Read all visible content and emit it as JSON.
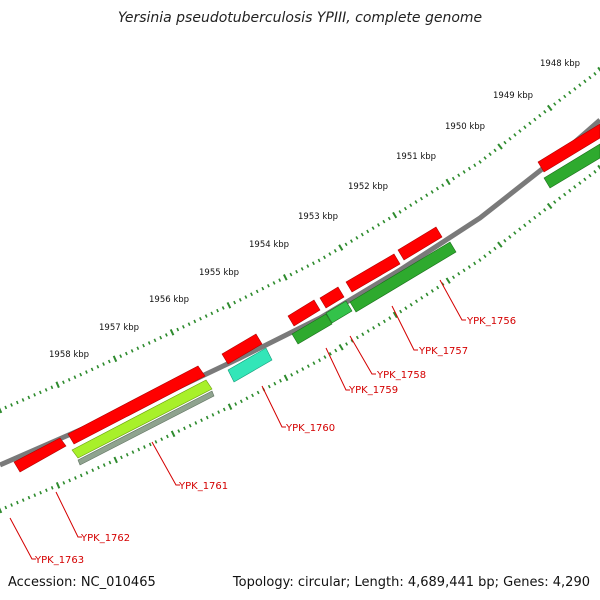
{
  "title": "Yersinia pseudotuberculosis YPIII, complete genome",
  "footer": {
    "accession": "Accession: NC_010465",
    "summary": "Topology: circular; Length: 4,689,441 bp; Genes: 4,290"
  },
  "colors": {
    "backbone": "#7a7a7a",
    "tick": "#2e8b2e",
    "label": "#d40000",
    "gene_forward": "#ff0000",
    "gene_reverse_dark": "#2eaa2e",
    "gene_reverse_light": "#a8f02a",
    "gene_reverse_gray": "#8fa38f",
    "gene_cyan": "#33e6b8"
  },
  "scale_labels": [
    "1948 kbp",
    "1949 kbp",
    "1950 kbp",
    "1951 kbp",
    "1952 kbp",
    "1953 kbp",
    "1954 kbp",
    "1955 kbp",
    "1956 kbp",
    "1957 kbp",
    "1958 kbp"
  ],
  "gene_labels": [
    "YPK_1756",
    "YPK_1757",
    "YPK_1758",
    "YPK_1759",
    "YPK_1760",
    "YPK_1761",
    "YPK_1762",
    "YPK_1763"
  ]
}
